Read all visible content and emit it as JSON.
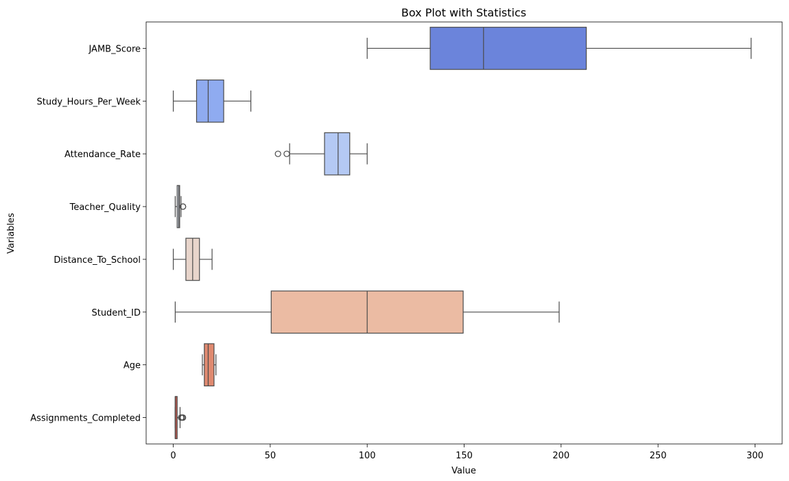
{
  "chart_data": {
    "type": "boxplot",
    "orientation": "horizontal",
    "title": "Box Plot with Statistics",
    "xlabel": "Value",
    "ylabel": "Variables",
    "xlim": [
      -14,
      314
    ],
    "xticks": [
      0,
      50,
      100,
      150,
      200,
      250,
      300
    ],
    "grid": false,
    "series": [
      {
        "name": "JAMB_Score",
        "min": 100,
        "q1": 132.5,
        "median": 160,
        "q3": 213,
        "max": 298,
        "outliers": [],
        "color": "#6b84db"
      },
      {
        "name": "Study_Hours_Per_Week",
        "min": 0,
        "q1": 12,
        "median": 18,
        "q3": 26,
        "max": 40,
        "outliers": [],
        "color": "#8fabf0"
      },
      {
        "name": "Attendance_Rate",
        "min": 60,
        "q1": 78,
        "median": 85,
        "q3": 91,
        "max": 100,
        "outliers": [
          54,
          58.5
        ],
        "color": "#b4c9f4"
      },
      {
        "name": "Teacher_Quality",
        "min": 1,
        "q1": 2,
        "median": 2.8,
        "q3": 3.3,
        "max": 4,
        "outliers": [
          5,
          5
        ],
        "color": "#d2d8e3"
      },
      {
        "name": "Distance_To_School",
        "min": 0,
        "q1": 6.5,
        "median": 10,
        "q3": 13.5,
        "max": 20,
        "outliers": [],
        "color": "#e8d5cb"
      },
      {
        "name": "Student_ID",
        "min": 1,
        "q1": 50.5,
        "median": 100,
        "q3": 149.5,
        "max": 199,
        "outliers": [],
        "color": "#ebbba3"
      },
      {
        "name": "Age",
        "min": 15,
        "q1": 16,
        "median": 18,
        "q3": 21,
        "max": 22,
        "outliers": [],
        "color": "#e08a70"
      },
      {
        "name": "Assignments_Completed",
        "min": 1,
        "q1": 1,
        "median": 1,
        "q3": 2,
        "max": 3.5,
        "outliers": [
          4,
          4.5,
          5
        ],
        "color": "#b6594f"
      }
    ]
  }
}
